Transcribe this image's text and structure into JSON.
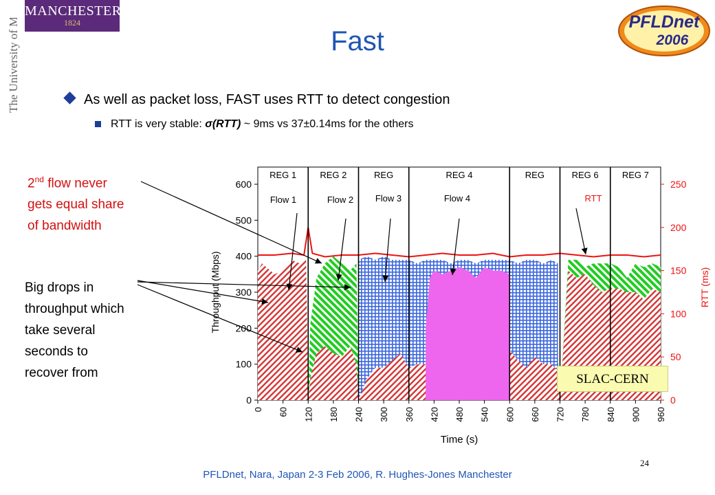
{
  "header": {
    "logo_text": "MANCHESTER",
    "logo_year": "1824",
    "university_vertical": "The University of Manchester",
    "pfldnet_logo_line1": "PFLDnet",
    "pfldnet_logo_line2": "2006"
  },
  "slide": {
    "title": "Fast",
    "bullet1": "As well as packet loss, FAST uses RTT to detect congestion",
    "bullet2_prefix": "RTT is very stable: ",
    "bullet2_sigma": "σ(RTT)",
    "bullet2_suffix": " ~ 9ms vs 37±0.14ms for the others",
    "annotation_flow_sup": "nd",
    "annotation_flow_a": "2",
    "annotation_flow_b": " flow never",
    "annotation_flow_c": "gets equal share",
    "annotation_flow_d": "of bandwidth",
    "annotation_drops": [
      "Big drops in",
      "throughput which",
      "take several",
      "seconds to",
      "recover from"
    ],
    "link_label": "SLAC-CERN",
    "footer": "PFLDnet, Nara, Japan 2-3 Feb 2006,  R. Hughes-Jones  Manchester",
    "page_number": "24"
  },
  "colors": {
    "title": "#1f55b3",
    "flow1": "#d43a3a",
    "flow2": "#22cc22",
    "flow3": "#3a66dd",
    "flow4": "#ee66ee",
    "rtt": "#ee1111"
  },
  "chart_data": {
    "type": "area",
    "xlabel": "Time (s)",
    "ylabel": "Throughput (Mbps)",
    "y2label": "RTT (ms)",
    "xlim": [
      0,
      960
    ],
    "ylim": [
      0,
      600
    ],
    "y2lim": [
      0,
      250
    ],
    "xticks": [
      0,
      60,
      120,
      180,
      240,
      300,
      360,
      420,
      480,
      540,
      600,
      660,
      720,
      780,
      840,
      900,
      960
    ],
    "yticks": [
      0,
      100,
      200,
      300,
      400,
      500,
      600
    ],
    "y2ticks": [
      0,
      50,
      100,
      150,
      200,
      250
    ],
    "grid": false,
    "regions": [
      {
        "label": "REG 1",
        "start": 0,
        "end": 120
      },
      {
        "label": "REG 2",
        "start": 120,
        "end": 240
      },
      {
        "label": "REG",
        "start": 240,
        "end": 360
      },
      {
        "label": "REG 4",
        "start": 360,
        "end": 600
      },
      {
        "label": "REG",
        "start": 600,
        "end": 720
      },
      {
        "label": "REG 6",
        "start": 720,
        "end": 840
      },
      {
        "label": "REG 7",
        "start": 840,
        "end": 960
      }
    ],
    "region_boundaries": [
      120,
      240,
      360,
      600,
      720,
      840
    ],
    "flow_labels": [
      "Flow 1",
      "Flow 2",
      "Flow 3",
      "Flow 4"
    ],
    "rtt_label": "RTT",
    "series": [
      {
        "name": "Flow 1",
        "x": [
          0,
          10,
          20,
          40,
          60,
          80,
          100,
          115,
          120,
          125,
          140,
          160,
          180,
          200,
          220,
          235,
          240,
          260,
          280,
          300,
          320,
          340,
          360,
          380,
          400,
          420,
          440,
          460,
          480,
          500,
          520,
          540,
          560,
          580,
          600,
          620,
          640,
          660,
          680,
          700,
          715,
          720,
          740,
          760,
          780,
          800,
          820,
          840,
          860,
          880,
          900,
          920,
          940,
          960
        ],
        "values": [
          360,
          380,
          370,
          350,
          360,
          390,
          380,
          390,
          0,
          60,
          130,
          150,
          130,
          120,
          150,
          100,
          0,
          60,
          90,
          90,
          110,
          130,
          90,
          100,
          100,
          110,
          120,
          110,
          100,
          100,
          120,
          110,
          100,
          100,
          140,
          110,
          90,
          120,
          100,
          100,
          80,
          0,
          360,
          340,
          350,
          320,
          300,
          310,
          310,
          300,
          300,
          280,
          310,
          300
        ]
      },
      {
        "name": "Flow 2",
        "x": [
          120,
          125,
          140,
          160,
          180,
          200,
          220,
          235,
          240,
          260,
          280,
          300,
          320,
          340,
          360,
          380,
          400,
          420,
          440,
          460,
          480,
          500,
          520,
          540,
          560,
          580,
          600,
          620,
          640,
          660,
          680,
          700,
          715,
          720,
          740,
          760,
          780,
          800,
          820,
          840,
          860,
          880,
          900,
          920,
          940,
          960
        ],
        "values": [
          0,
          210,
          340,
          380,
          400,
          380,
          360,
          380,
          0,
          140,
          140,
          140,
          140,
          150,
          140,
          140,
          140,
          140,
          140,
          140,
          140,
          140,
          140,
          140,
          140,
          140,
          140,
          140,
          150,
          130,
          140,
          140,
          120,
          0,
          390,
          390,
          370,
          380,
          380,
          380,
          370,
          340,
          380,
          370,
          380,
          370
        ]
      },
      {
        "name": "Flow 3",
        "x": [
          240,
          260,
          280,
          300,
          320,
          340,
          360,
          380,
          400,
          420,
          440,
          460,
          480,
          500,
          520,
          540,
          560,
          580,
          600,
          620,
          640,
          660,
          680,
          700,
          715
        ],
        "values": [
          390,
          400,
          390,
          400,
          390,
          390,
          390,
          380,
          390,
          390,
          390,
          380,
          390,
          390,
          380,
          390,
          390,
          390,
          390,
          380,
          390,
          390,
          380,
          390,
          380
        ]
      },
      {
        "name": "Flow 4",
        "x": [
          400,
          410,
          420,
          440,
          460,
          480,
          500,
          520,
          540,
          560,
          580,
          600
        ],
        "values": [
          200,
          340,
          360,
          350,
          360,
          370,
          360,
          340,
          370,
          360,
          360,
          350
        ]
      },
      {
        "name": "RTT",
        "axis": "y2",
        "x": [
          0,
          40,
          80,
          110,
          120,
          130,
          160,
          200,
          240,
          280,
          320,
          360,
          400,
          440,
          480,
          520,
          560,
          600,
          640,
          680,
          720,
          760,
          800,
          840,
          880,
          920,
          960
        ],
        "values": [
          168,
          168,
          170,
          168,
          200,
          170,
          166,
          168,
          168,
          170,
          168,
          166,
          168,
          170,
          168,
          168,
          170,
          166,
          168,
          168,
          170,
          168,
          166,
          168,
          168,
          166,
          168
        ]
      }
    ]
  }
}
